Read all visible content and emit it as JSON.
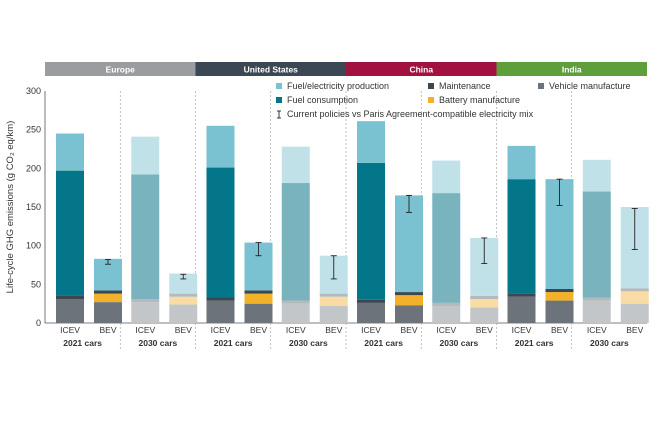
{
  "chart_data": {
    "type": "bar",
    "stacked": true,
    "ylabel": "Life-cycle GHG emissions (g CO₂ eq/km)",
    "ylim": [
      0,
      300
    ],
    "yticks": [
      0,
      50,
      100,
      150,
      200,
      250,
      300
    ],
    "regions": [
      {
        "name": "Europe",
        "color": "#999da0"
      },
      {
        "name": "United States",
        "color": "#3b4752"
      },
      {
        "name": "China",
        "color": "#a3123e"
      },
      {
        "name": "India",
        "color": "#5e9e3b"
      }
    ],
    "groups": [
      "2021 cars",
      "2030 cars"
    ],
    "vehicle_types": [
      "ICEV",
      "BEV"
    ],
    "series": [
      {
        "name": "Fuel/electricity production",
        "key": "prod",
        "color": "#7ac1d1",
        "light": "#c1e1e9"
      },
      {
        "name": "Fuel consumption",
        "key": "cons",
        "color": "#04768a",
        "light": "#79b3be"
      },
      {
        "name": "Maintenance",
        "key": "maint",
        "color": "#3d4751",
        "light": "#b4b9bd"
      },
      {
        "name": "Battery manufacture",
        "key": "batt",
        "color": "#f3b12a",
        "light": "#f8dca3"
      },
      {
        "name": "Vehicle manufacture",
        "key": "veh",
        "color": "#6c737a",
        "light": "#c3c6c9"
      }
    ],
    "legend": [
      {
        "label": "Fuel/electricity production",
        "key": "prod"
      },
      {
        "label": "Maintenance",
        "key": "maint"
      },
      {
        "label": "Vehicle manufacture",
        "key": "veh"
      },
      {
        "label": "Fuel consumption",
        "key": "cons"
      },
      {
        "label": "Battery manufacture",
        "key": "batt"
      },
      {
        "label": "Current policies vs Paris Agreement-compatible electricity mix",
        "key": "error"
      }
    ],
    "bars": [
      {
        "region": "Europe",
        "group": "2021 cars",
        "type": "ICEV",
        "light": false,
        "veh": 31,
        "batt": 0,
        "maint": 4,
        "cons": 162,
        "prod": 48
      },
      {
        "region": "Europe",
        "group": "2021 cars",
        "type": "BEV",
        "light": false,
        "veh": 27,
        "batt": 11,
        "maint": 4,
        "cons": 0,
        "prod": 41,
        "err": [
          76,
          82
        ]
      },
      {
        "region": "Europe",
        "group": "2030 cars",
        "type": "ICEV",
        "light": true,
        "veh": 27,
        "batt": 0,
        "maint": 4,
        "cons": 161,
        "prod": 49
      },
      {
        "region": "Europe",
        "group": "2030 cars",
        "type": "BEV",
        "light": true,
        "veh": 24,
        "batt": 10,
        "maint": 4,
        "cons": 0,
        "prod": 26,
        "err": [
          57,
          63
        ]
      },
      {
        "region": "United States",
        "group": "2021 cars",
        "type": "ICEV",
        "light": false,
        "veh": 29,
        "batt": 0,
        "maint": 4,
        "cons": 168,
        "prod": 54
      },
      {
        "region": "United States",
        "group": "2021 cars",
        "type": "BEV",
        "light": false,
        "veh": 25,
        "batt": 13,
        "maint": 4,
        "cons": 0,
        "prod": 62,
        "err": [
          87,
          104
        ]
      },
      {
        "region": "United States",
        "group": "2030 cars",
        "type": "ICEV",
        "light": true,
        "veh": 25,
        "batt": 0,
        "maint": 4,
        "cons": 152,
        "prod": 47
      },
      {
        "region": "United States",
        "group": "2030 cars",
        "type": "BEV",
        "light": true,
        "veh": 22,
        "batt": 12,
        "maint": 4,
        "cons": 0,
        "prod": 49,
        "err": [
          57,
          87
        ]
      },
      {
        "region": "China",
        "group": "2021 cars",
        "type": "ICEV",
        "light": false,
        "veh": 26,
        "batt": 0,
        "maint": 4,
        "cons": 177,
        "prod": 54
      },
      {
        "region": "China",
        "group": "2021 cars",
        "type": "BEV",
        "light": false,
        "veh": 23,
        "batt": 13,
        "maint": 4,
        "cons": 0,
        "prod": 125,
        "err": [
          143,
          165
        ]
      },
      {
        "region": "China",
        "group": "2030 cars",
        "type": "ICEV",
        "light": true,
        "veh": 22,
        "batt": 0,
        "maint": 4,
        "cons": 142,
        "prod": 42
      },
      {
        "region": "China",
        "group": "2030 cars",
        "type": "BEV",
        "light": true,
        "veh": 20,
        "batt": 11,
        "maint": 4,
        "cons": 0,
        "prod": 75,
        "err": [
          77,
          110
        ]
      },
      {
        "region": "India",
        "group": "2021 cars",
        "type": "ICEV",
        "light": false,
        "veh": 34,
        "batt": 0,
        "maint": 4,
        "cons": 148,
        "prod": 43
      },
      {
        "region": "India",
        "group": "2021 cars",
        "type": "BEV",
        "light": false,
        "veh": 29,
        "batt": 11,
        "maint": 4,
        "cons": 0,
        "prod": 142,
        "err": [
          152,
          186
        ]
      },
      {
        "region": "India",
        "group": "2030 cars",
        "type": "ICEV",
        "light": true,
        "veh": 29,
        "batt": 0,
        "maint": 4,
        "cons": 137,
        "prod": 41
      },
      {
        "region": "India",
        "group": "2030 cars",
        "type": "BEV",
        "light": true,
        "veh": 25,
        "batt": 16,
        "maint": 4,
        "cons": 0,
        "prod": 105,
        "err": [
          95,
          148
        ]
      }
    ]
  }
}
